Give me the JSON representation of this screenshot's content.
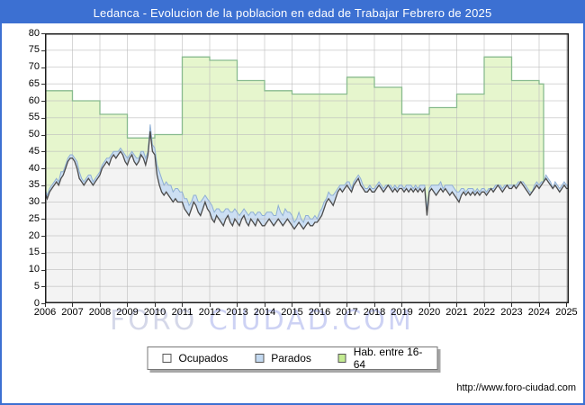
{
  "header": {
    "title": "Ledanca - Evolucion de la poblacion en edad de Trabajar Febrero de 2025"
  },
  "watermark": {
    "part1": "FORO ",
    "part2": "CIUDAD.COM"
  },
  "footer": {
    "url": "http://www.foro-ciudad.com"
  },
  "colors": {
    "header_bg": "#3c70d2",
    "frame_border": "#3c70d2",
    "grid": "#bdbdbd",
    "plot_border": "#1c1c1c",
    "hab_fill": "#e6f6cd",
    "hab_stroke": "#89bb8f",
    "parados_fill": "#ccdff3",
    "parados_stroke": "#8fafd4",
    "ocupados_fill": "#f3f3f3",
    "ocupados_stroke": "#4c4c4c"
  },
  "legend": {
    "items": [
      {
        "label": "Ocupados",
        "swatch_fill": "#fbfbfb",
        "swatch_border": "#555555"
      },
      {
        "label": "Parados",
        "swatch_fill": "#c3d9f0",
        "swatch_border": "#555555"
      },
      {
        "label": "Hab. entre 16-64",
        "swatch_fill": "#c3eb91",
        "swatch_border": "#555555"
      }
    ]
  },
  "chart_data": {
    "type": "area",
    "title": "Ledanca - Evolucion de la poblacion en edad de Trabajar Febrero de 2025",
    "x_start": "2006-01",
    "x_end": "2025-02",
    "months": 230,
    "x_tick_labels": [
      "2006",
      "2007",
      "2008",
      "2009",
      "2010",
      "2011",
      "2012",
      "2013",
      "2014",
      "2015",
      "2016",
      "2017",
      "2018",
      "2019",
      "2020",
      "2021",
      "2022",
      "2023",
      "2024",
      "2025"
    ],
    "ylim": [
      0,
      80
    ],
    "y_tick_step": 5,
    "grid": true,
    "legend_position": "bottom",
    "series": {
      "hab": {
        "name": "Hab. entre 16-64",
        "note": "annual step values, one per year 2006-2024, series ends early 2024",
        "years": [
          "2006",
          "2007",
          "2008",
          "2009",
          "2010",
          "2011",
          "2012",
          "2013",
          "2014",
          "2015",
          "2016",
          "2017",
          "2018",
          "2019",
          "2020",
          "2021",
          "2022",
          "2023",
          "2024"
        ],
        "values": [
          63,
          60,
          56,
          49,
          50,
          73,
          72,
          66,
          63,
          62,
          62,
          67,
          64,
          56,
          58,
          62,
          73,
          66,
          65
        ],
        "end_month": 218,
        "fill": "#e6f6cd",
        "stroke": "#89bb8f"
      },
      "ocupados": {
        "name": "Ocupados",
        "note": "monthly values Jan2006-Feb2025",
        "values": [
          33,
          31,
          33,
          34,
          35,
          36,
          35,
          37,
          38,
          40,
          42,
          43,
          43,
          42,
          40,
          37,
          36,
          35,
          36,
          37,
          36,
          35,
          36,
          37,
          38,
          40,
          41,
          42,
          41,
          43,
          44,
          43,
          44,
          45,
          44,
          42,
          41,
          43,
          44,
          42,
          41,
          42,
          44,
          43,
          41,
          44,
          51,
          45,
          44,
          38,
          35,
          33,
          32,
          33,
          32,
          31,
          30,
          31,
          30,
          30,
          30,
          28,
          27,
          26,
          28,
          30,
          29,
          27,
          26,
          28,
          30,
          28,
          27,
          25,
          24,
          26,
          25,
          24,
          23,
          25,
          26,
          24,
          23,
          25,
          24,
          23,
          25,
          26,
          24,
          23,
          25,
          24,
          23,
          25,
          24,
          23,
          23,
          24,
          25,
          24,
          23,
          24,
          25,
          24,
          23,
          24,
          25,
          24,
          23,
          22,
          23,
          24,
          23,
          22,
          23,
          24,
          23,
          23,
          24,
          24,
          25,
          26,
          28,
          30,
          31,
          30,
          29,
          31,
          33,
          34,
          33,
          34,
          35,
          34,
          33,
          35,
          36,
          37,
          35,
          34,
          33,
          33,
          34,
          33,
          33,
          34,
          35,
          34,
          33,
          34,
          35,
          34,
          33,
          34,
          33,
          34,
          34,
          33,
          34,
          33,
          34,
          33,
          34,
          33,
          34,
          33,
          34,
          26,
          33,
          34,
          33,
          32,
          33,
          34,
          33,
          34,
          33,
          32,
          33,
          32,
          31,
          30,
          32,
          33,
          32,
          33,
          32,
          33,
          32,
          33,
          32,
          33,
          33,
          32,
          33,
          34,
          33,
          34,
          35,
          34,
          33,
          34,
          35,
          34,
          34,
          35,
          34,
          35,
          36,
          35,
          34,
          33,
          32,
          33,
          34,
          35,
          34,
          35,
          36,
          37,
          36,
          35,
          34,
          35,
          34,
          33,
          34,
          35,
          34,
          34
        ],
        "fill": "#f3f3f3",
        "stroke": "#4c4c4c"
      },
      "parados": {
        "name": "Parados",
        "note": "monthly values stacked on top of Ocupados",
        "values": [
          1,
          1,
          1,
          1,
          1,
          1,
          1,
          2,
          1,
          1,
          1,
          1,
          1,
          1,
          2,
          2,
          1,
          1,
          1,
          1,
          2,
          1,
          1,
          1,
          1,
          1,
          1,
          1,
          2,
          1,
          1,
          2,
          1,
          1,
          1,
          2,
          2,
          1,
          1,
          2,
          2,
          1,
          1,
          2,
          2,
          1,
          2,
          2,
          2,
          3,
          4,
          4,
          3,
          3,
          3,
          4,
          3,
          3,
          4,
          3,
          3,
          3,
          4,
          3,
          2,
          2,
          3,
          3,
          4,
          3,
          2,
          3,
          3,
          4,
          3,
          2,
          3,
          3,
          4,
          3,
          2,
          3,
          4,
          3,
          3,
          3,
          2,
          2,
          3,
          3,
          2,
          3,
          3,
          2,
          3,
          3,
          3,
          3,
          2,
          3,
          3,
          2,
          4,
          3,
          3,
          4,
          2,
          3,
          3,
          2,
          2,
          3,
          2,
          2,
          3,
          2,
          2,
          2,
          2,
          1,
          2,
          2,
          2,
          1,
          2,
          2,
          3,
          2,
          1,
          1,
          2,
          1,
          1,
          2,
          1,
          1,
          1,
          1,
          2,
          1,
          1,
          1,
          1,
          1,
          1,
          1,
          1,
          1,
          1,
          1,
          0,
          1,
          1,
          1,
          1,
          1,
          1,
          1,
          1,
          2,
          1,
          1,
          1,
          1,
          1,
          2,
          1,
          2,
          1,
          1,
          2,
          3,
          2,
          2,
          1,
          1,
          2,
          3,
          2,
          2,
          2,
          3,
          2,
          1,
          1,
          1,
          2,
          1,
          1,
          1,
          1,
          1,
          1,
          1,
          1,
          0,
          1,
          1,
          0,
          1,
          1,
          1,
          0,
          1,
          1,
          0,
          1,
          1,
          0,
          1,
          1,
          1,
          1,
          0,
          1,
          1,
          1,
          1,
          0,
          1,
          1,
          1,
          0,
          1,
          1,
          1,
          1,
          1,
          1,
          1
        ],
        "fill": "#ccdff3",
        "stroke": "#8fafd4"
      }
    }
  }
}
